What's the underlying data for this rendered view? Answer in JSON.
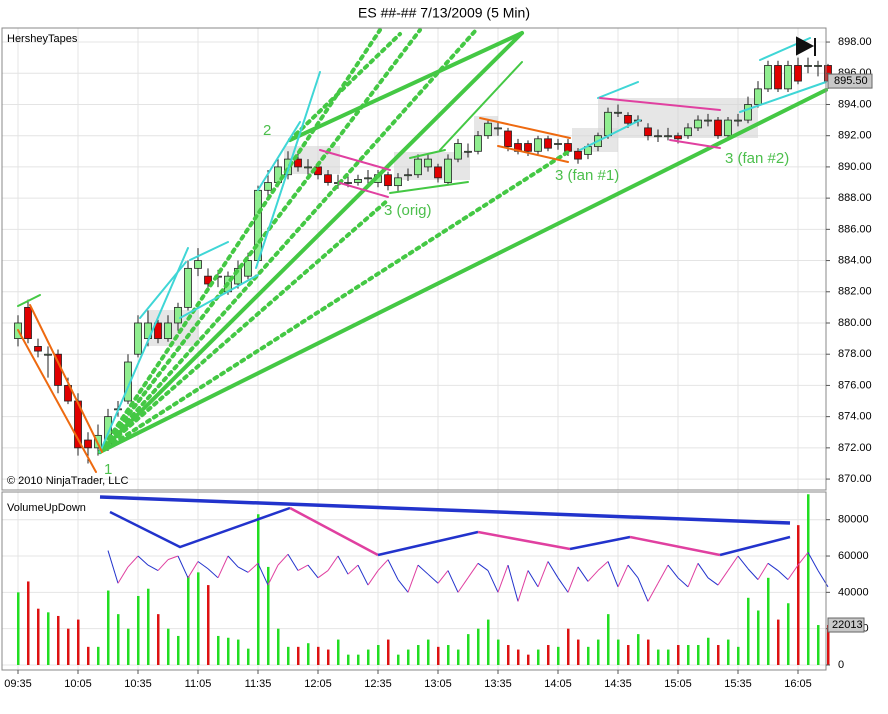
{
  "title": "ES ##-##  7/13/2009 (5 Min)",
  "chart_data": [
    {
      "type": "candlestick",
      "title": "HersheyTapes",
      "copyright": "© 2010 NinjaTrader, LLC",
      "open": [
        879,
        881,
        878.5,
        878,
        878,
        876,
        875,
        872.5,
        872,
        872,
        874.5,
        875,
        878,
        879,
        880,
        879,
        880,
        881,
        883.5,
        883,
        883,
        882,
        882.5,
        883,
        884,
        888.5,
        889,
        889.5,
        890.5,
        890,
        890,
        889.5,
        889,
        889,
        889,
        889.3,
        889,
        889.5,
        888.8,
        889.5,
        889.5,
        890,
        890,
        889,
        890.5,
        891,
        891,
        892,
        892.5,
        892.3,
        891.5,
        891.5,
        891,
        891.8,
        891.5,
        891.5,
        891,
        890.8,
        891.3,
        892,
        893.5,
        893.3,
        893,
        892.5,
        892,
        892,
        892,
        892,
        892.5,
        893,
        893,
        892,
        893,
        893,
        894,
        895,
        896.5,
        895,
        896.5,
        896.5,
        896.5,
        896.5
      ],
      "high": [
        880.5,
        881.5,
        879,
        878.5,
        878.3,
        876.5,
        875.5,
        873,
        873.5,
        874.5,
        875,
        878,
        880.5,
        880.8,
        880.2,
        880.5,
        881.3,
        884,
        884.8,
        883.5,
        883.4,
        883.3,
        884,
        884.5,
        888.8,
        889.8,
        890.5,
        891,
        891,
        890.5,
        890.2,
        889.8,
        889.5,
        889.4,
        889.5,
        889.8,
        889.8,
        889.7,
        889.6,
        889.9,
        890.8,
        890.8,
        890.2,
        890.8,
        891.8,
        891.5,
        892.3,
        893,
        892.9,
        892.5,
        891.8,
        891.7,
        892,
        892,
        891.8,
        891.8,
        891.2,
        891.5,
        892.2,
        893.8,
        894,
        893.5,
        893.3,
        892.8,
        892.4,
        892.5,
        892.2,
        892.8,
        893.3,
        893.4,
        893.2,
        893.2,
        893.4,
        894.5,
        895.5,
        896.8,
        896.8,
        896.8,
        897,
        897,
        896.8,
        896.6
      ],
      "low": [
        878.5,
        878.7,
        877.8,
        876.5,
        875.5,
        874.8,
        871.5,
        871,
        871.5,
        871.8,
        874,
        874.8,
        877.8,
        878.5,
        878.7,
        878.8,
        879.5,
        880.8,
        883,
        882,
        882.3,
        881.8,
        882.2,
        882.8,
        883.8,
        888,
        888.7,
        889.2,
        889.7,
        889.5,
        889.2,
        888.8,
        888.6,
        888.7,
        888.8,
        888.9,
        888.7,
        888.5,
        888.4,
        889.1,
        889.3,
        889.7,
        889,
        888.8,
        890.3,
        890.6,
        890.8,
        891.8,
        892,
        891,
        890.8,
        890.7,
        890.8,
        891,
        891.1,
        890.7,
        890.2,
        890.5,
        891,
        891.8,
        893.2,
        892.5,
        892.6,
        891.7,
        891.6,
        891.7,
        891.5,
        891.8,
        892.3,
        892.6,
        891.8,
        891.7,
        892.6,
        892.8,
        893.8,
        894.8,
        894.8,
        894.8,
        895.3,
        896,
        895.8,
        895
      ],
      "close": [
        880,
        879,
        878.2,
        878,
        876,
        875,
        872,
        872,
        872.8,
        874,
        874.5,
        877.5,
        880,
        880,
        879,
        880,
        881,
        883.5,
        884,
        882.5,
        883,
        883,
        883.5,
        884,
        888.5,
        889,
        890,
        890.5,
        890,
        890,
        889.5,
        889,
        889,
        889,
        889.2,
        889.3,
        889.5,
        888.8,
        889.3,
        889.5,
        890.5,
        890.5,
        889.3,
        890.5,
        891.5,
        891,
        892,
        892.8,
        892.5,
        891.3,
        891,
        891,
        891.8,
        891.2,
        891.5,
        891,
        890.5,
        891.3,
        892,
        893.5,
        893.5,
        892.8,
        893,
        892,
        892,
        892,
        891.8,
        892.5,
        893,
        893,
        892,
        893,
        893,
        894,
        895,
        896.5,
        895,
        896.5,
        895.5,
        896.5,
        896.5,
        895.5
      ],
      "last_label": {
        "value": 895.5,
        "label": "895.50"
      },
      "up_color": "#90ee90",
      "down_color": "#e00000",
      "ylim": [
        869.3,
        898.9
      ],
      "yticks": [
        {
          "value": 870,
          "label": "870.00"
        },
        {
          "value": 872,
          "label": "872.00"
        },
        {
          "value": 874,
          "label": "874.00"
        },
        {
          "value": 876,
          "label": "876.00"
        },
        {
          "value": 878,
          "label": "878.00"
        },
        {
          "value": 880,
          "label": "880.00"
        },
        {
          "value": 882,
          "label": "882.00"
        },
        {
          "value": 884,
          "label": "884.00"
        },
        {
          "value": 886,
          "label": "886.00"
        },
        {
          "value": 888,
          "label": "888.00"
        },
        {
          "value": 890,
          "label": "890.00"
        },
        {
          "value": 892,
          "label": "892.00"
        },
        {
          "value": 894,
          "label": "894.00"
        },
        {
          "value": 896,
          "label": "896.00"
        },
        {
          "value": 898,
          "label": "898.00"
        }
      ],
      "grid": true,
      "annotations": [
        "1",
        "2",
        "3 (orig)",
        "3 (fan #1)",
        "3 (fan #2)"
      ]
    },
    {
      "type": "bar",
      "title": "VolumeUpDown",
      "categories": [
        "09:35",
        null,
        null,
        null,
        null,
        null,
        "10:05",
        null,
        null,
        null,
        null,
        null,
        "10:35",
        null,
        null,
        null,
        null,
        null,
        "11:05",
        null,
        null,
        null,
        null,
        null,
        "11:35",
        null,
        null,
        null,
        null,
        null,
        "12:05",
        null,
        null,
        null,
        null,
        null,
        "12:35",
        null,
        null,
        null,
        null,
        null,
        "13:05",
        null,
        null,
        null,
        null,
        null,
        "13:35",
        null,
        null,
        null,
        null,
        null,
        "14:05",
        null,
        null,
        null,
        null,
        null,
        "14:35",
        null,
        null,
        null,
        null,
        null,
        "15:05",
        null,
        null,
        null,
        null,
        null,
        "15:35",
        null,
        null,
        null,
        null,
        null,
        "16:05",
        null,
        null,
        null
      ],
      "values": [
        40000,
        46000,
        31000,
        29000,
        27000,
        20000,
        25000,
        10000,
        10000,
        41000,
        28000,
        20000,
        38000,
        42000,
        28000,
        20000,
        16000,
        49000,
        51000,
        44000,
        16000,
        15000,
        14000,
        9000,
        83000,
        54000,
        20000,
        10000,
        10000,
        12000,
        10000,
        8500,
        14000,
        5700,
        5700,
        8500,
        11000,
        14000,
        5700,
        8500,
        11000,
        14000,
        10000,
        11000,
        8500,
        17000,
        20000,
        25000,
        14000,
        11000,
        8500,
        5700,
        8500,
        11000,
        10000,
        20000,
        14000,
        10000,
        14000,
        28000,
        14000,
        11000,
        17000,
        14000,
        8500,
        8500,
        11000,
        11000,
        11000,
        15000,
        11000,
        14000,
        10000,
        37000,
        30000,
        48000,
        25000,
        34000,
        77000,
        94000,
        22000,
        22013
      ],
      "ratio": [
        null,
        null,
        null,
        null,
        null,
        null,
        null,
        null,
        null,
        63000,
        45000,
        54000,
        60000,
        55000,
        52000,
        58000,
        60000,
        48000,
        57000,
        53000,
        48000,
        60000,
        54000,
        51000,
        56000,
        44000,
        55000,
        61000,
        52000,
        55000,
        48000,
        52000,
        60000,
        50000,
        55000,
        44000,
        52000,
        58000,
        47000,
        40000,
        55000,
        50000,
        45000,
        52000,
        40000,
        48000,
        56000,
        52000,
        40000,
        55000,
        35000,
        52000,
        43000,
        57000,
        48000,
        40000,
        54000,
        46000,
        52000,
        57000,
        43000,
        55000,
        48000,
        35000,
        45000,
        55000,
        48000,
        43000,
        56000,
        48000,
        44000,
        52000,
        60000,
        53000,
        47000,
        56000,
        52000,
        47000,
        55000,
        62000,
        52000,
        43000
      ],
      "ratio_down_color": "#2233cc",
      "ratio_up_color": "#e040a0",
      "ylim": [
        0,
        98000
      ],
      "yticks": [
        0,
        20000,
        40000,
        60000,
        80000
      ],
      "grid": true
    }
  ]
}
